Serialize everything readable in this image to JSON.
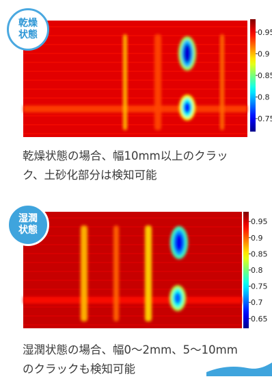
{
  "panels": {
    "dry": {
      "badge_line1": "乾燥",
      "badge_line2": "状態",
      "caption_line1": "乾燥状態の場合、幅10mm以上のクラッ",
      "caption_line2": "ク、土砂化部分は検知可能"
    },
    "wet": {
      "badge_line1": "湿潤",
      "badge_line2": "状態",
      "caption_line1": "湿潤状態の場合、幅0〜2mm、5〜10mm",
      "caption_line2": "のクラックも検知可能"
    }
  },
  "colors": {
    "badge_blue": "#3fa4dd",
    "heatmap_low": "#0a1f8f",
    "heatmap_high": "#b81414"
  },
  "chart_data": [
    {
      "type": "heatmap",
      "colorscale": "jet",
      "colorbar_range": [
        0.72,
        0.98
      ],
      "colorbar_ticks": [
        "0.95",
        "0.9",
        "0.85",
        "0.8",
        "0.75"
      ],
      "colorbar_tick_values": [
        0.95,
        0.9,
        0.85,
        0.8,
        0.75
      ],
      "background_value": 0.955,
      "features": [
        {
          "kind": "horizontal-band",
          "value": 0.93
        },
        {
          "kind": "vertical-band",
          "value": 0.93
        },
        {
          "kind": "vertical-band",
          "value": 0.9
        },
        {
          "kind": "vertical-band",
          "value": 0.92
        },
        {
          "kind": "spot",
          "value": 0.74
        },
        {
          "kind": "spot",
          "value": 0.76
        }
      ]
    },
    {
      "type": "heatmap",
      "colorscale": "jet",
      "colorbar_range": [
        0.62,
        0.98
      ],
      "colorbar_ticks": [
        "0.95",
        "0.9",
        "0.85",
        "0.8",
        "0.75",
        "0.7",
        "0.65"
      ],
      "colorbar_tick_values": [
        0.95,
        0.9,
        0.85,
        0.8,
        0.75,
        0.7,
        0.65
      ],
      "background_value": 0.955,
      "features": [
        {
          "kind": "horizontal-band",
          "value": 0.93
        },
        {
          "kind": "vertical-band",
          "value": 0.87
        },
        {
          "kind": "vertical-band",
          "value": 0.9
        },
        {
          "kind": "vertical-band",
          "value": 0.86
        },
        {
          "kind": "spot",
          "value": 0.66
        },
        {
          "kind": "spot",
          "value": 0.7
        }
      ]
    }
  ]
}
